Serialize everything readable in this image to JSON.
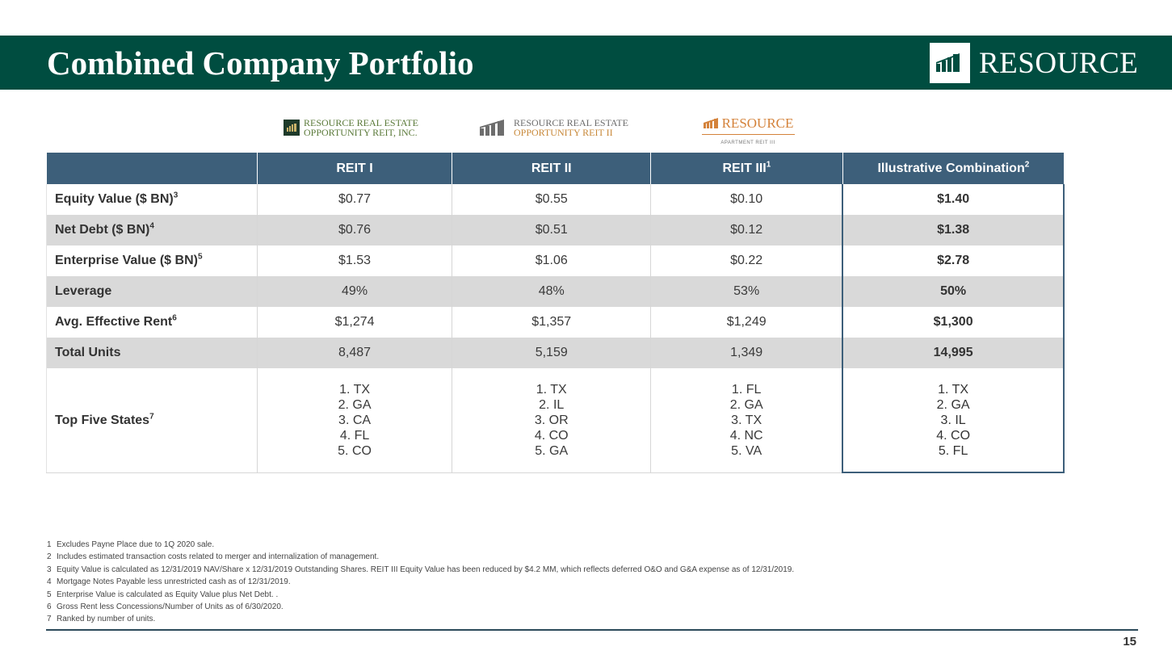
{
  "header": {
    "title": "Combined Company Portfolio",
    "brand": "RESOURCE",
    "colors": {
      "header_bg": "#004d40",
      "table_header_bg": "#3d5f7a",
      "shade_row": "#d9d9d9"
    }
  },
  "logos": {
    "reit1": {
      "line1": "RESOURCE REAL ESTATE",
      "line2": "OPPORTUNITY REIT, INC."
    },
    "reit2": {
      "line1": "RESOURCE REAL ESTATE",
      "line2": "OPPORTUNITY REIT II"
    },
    "reit3": {
      "word": "RESOURCE",
      "sub": "APARTMENT REIT III"
    }
  },
  "table": {
    "columns": [
      {
        "label": "REIT I",
        "sup": ""
      },
      {
        "label": "REIT II",
        "sup": ""
      },
      {
        "label": "REIT III",
        "sup": "1"
      },
      {
        "label": "Illustrative Combination",
        "sup": "2"
      }
    ],
    "rows": [
      {
        "label": "Equity Value ($ BN)",
        "sup": "3",
        "values": [
          "$0.77",
          "$0.55",
          "$0.10",
          "$1.40"
        ]
      },
      {
        "label": "Net Debt ($ BN)",
        "sup": "4",
        "values": [
          "$0.76",
          "$0.51",
          "$0.12",
          "$1.38"
        ]
      },
      {
        "label": "Enterprise Value ($ BN)",
        "sup": "5",
        "values": [
          "$1.53",
          "$1.06",
          "$0.22",
          "$2.78"
        ]
      },
      {
        "label": "Leverage",
        "sup": "",
        "values": [
          "49%",
          "48%",
          "53%",
          "50%"
        ]
      },
      {
        "label": "Avg. Effective Rent",
        "sup": "6",
        "values": [
          "$1,274",
          "$1,357",
          "$1,249",
          "$1,300"
        ]
      },
      {
        "label": "Total Units",
        "sup": "",
        "values": [
          "8,487",
          "5,159",
          "1,349",
          "14,995"
        ]
      }
    ],
    "top_states": {
      "label": "Top Five States",
      "sup": "7",
      "lists": [
        [
          "1. TX",
          "2. GA",
          "3. CA",
          "4. FL",
          "5. CO"
        ],
        [
          "1. TX",
          "2. IL",
          "3. OR",
          "4. CO",
          "5. GA"
        ],
        [
          "1. FL",
          "2. GA",
          "3. TX",
          "4. NC",
          "5. VA"
        ],
        [
          "1. TX",
          "2. GA",
          "3. IL",
          "4. CO",
          "5. FL"
        ]
      ]
    }
  },
  "footnotes": [
    {
      "num": "1",
      "text": "Excludes Payne Place due to 1Q 2020 sale."
    },
    {
      "num": "2",
      "text": "Includes estimated transaction costs related to merger and internalization of management."
    },
    {
      "num": "3",
      "text": "Equity Value is calculated as 12/31/2019 NAV/Share x 12/31/2019 Outstanding Shares. REIT III Equity Value has been reduced by $4.2 MM, which reflects deferred O&O and G&A expense as of 12/31/2019."
    },
    {
      "num": "4",
      "text": "Mortgage Notes Payable less unrestricted cash as of 12/31/2019."
    },
    {
      "num": "5",
      "text": "Enterprise Value is calculated as Equity Value plus Net Debt. ."
    },
    {
      "num": "6",
      "text": "Gross Rent less Concessions/Number of Units as of 6/30/2020."
    },
    {
      "num": "7",
      "text": "Ranked by number of units."
    }
  ],
  "page_number": "15"
}
